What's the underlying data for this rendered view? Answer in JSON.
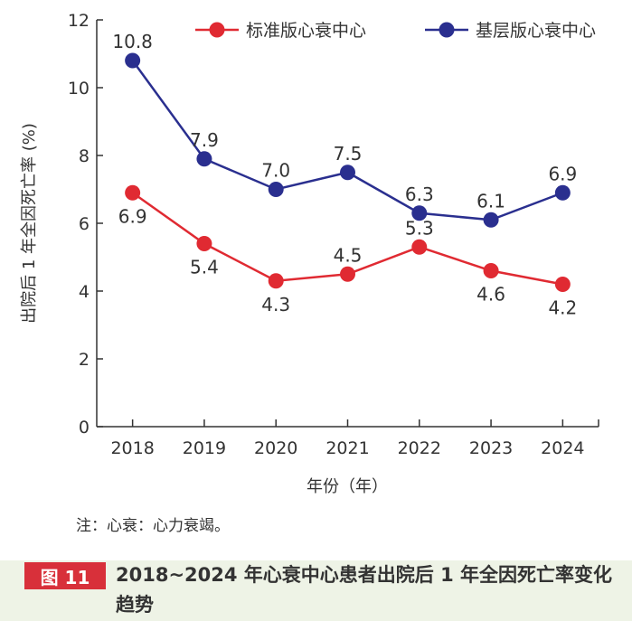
{
  "chart_data": {
    "type": "line",
    "x": [
      "2018",
      "2019",
      "2020",
      "2021",
      "2022",
      "2023",
      "2024"
    ],
    "series": [
      {
        "name": "标准版心衰中心",
        "values": [
          6.9,
          5.4,
          4.3,
          4.5,
          5.3,
          4.6,
          4.2
        ],
        "labels": [
          "6.9",
          "5.4",
          "4.3",
          "4.5",
          "5.3",
          "4.6",
          "4.2"
        ],
        "color": "#e02a32"
      },
      {
        "name": "基层版心衰中心",
        "values": [
          10.8,
          7.9,
          7.0,
          7.5,
          6.3,
          6.1,
          6.9
        ],
        "labels": [
          "10.8",
          "7.9",
          "7.0",
          "7.5",
          "6.3",
          "6.1",
          "6.9"
        ],
        "color": "#2a2f8f"
      }
    ],
    "xlabel": "年份（年）",
    "ylabel": "出院后 1 年全因死亡率 (%)",
    "ylim": [
      0,
      12
    ],
    "yticks": [
      "0",
      "2",
      "4",
      "6",
      "8",
      "10",
      "12"
    ],
    "legend": "top-right"
  },
  "note": "注：心衰：心力衰竭。",
  "figure": {
    "label": "图 11",
    "title": "2018~2024 年心衰中心患者出院后 1 年全因死亡率变化趋势"
  }
}
